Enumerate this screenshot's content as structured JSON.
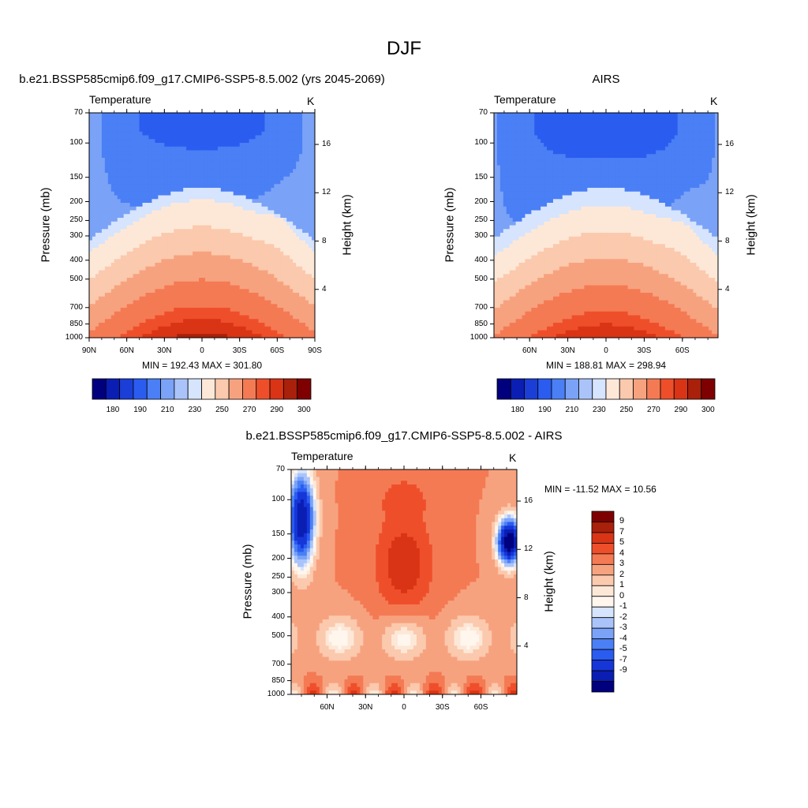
{
  "figure": {
    "title": "DJF"
  },
  "colors": {
    "abs_palette": [
      "#00007f",
      "#0a1eb3",
      "#1a3ed6",
      "#2a5cf0",
      "#4a7ff5",
      "#7aa2f7",
      "#aac4fa",
      "#d6e4fd",
      "#fde8d8",
      "#fbc9ad",
      "#f7a27f",
      "#f47a54",
      "#ee4f2a",
      "#d93415",
      "#a9200b",
      "#7f0000"
    ],
    "diff_palette": [
      "#00007f",
      "#0a1eb3",
      "#1636d8",
      "#2a5cf0",
      "#4a7ff5",
      "#7aa2f7",
      "#aac4fa",
      "#d6e4fd",
      "#fff6ee",
      "#fde8d8",
      "#fbc9ad",
      "#f7a27f",
      "#f47a54",
      "#ee4f2a",
      "#d93415",
      "#a9200b",
      "#7f0000"
    ]
  },
  "chart_data": [
    {
      "type": "heatmap",
      "id": "model",
      "title": "b.e21.BSSP585cmip6.f09_g17.CMIP6-SSP5-8.5.002 (yrs 2045-2069)",
      "variable": "Temperature",
      "units": "K",
      "xlabel": "",
      "ylabel": "Pressure (mb)",
      "ylabel_right": "Height (km)",
      "x_ticks": [
        "90N",
        "60N",
        "30N",
        "0",
        "30S",
        "60S",
        "90S"
      ],
      "x_range": [
        90,
        -90
      ],
      "y_ticks": [
        "70",
        "100",
        "150",
        "200",
        "250",
        "300",
        "400",
        "500",
        "700",
        "850",
        "1000"
      ],
      "y_right_ticks": [
        "16",
        "12",
        "8",
        "4"
      ],
      "min_label": "MIN = 192.43  MAX = 301.80",
      "stats": {
        "min": 192.43,
        "max": 301.8
      },
      "colorbar": {
        "levels": [
          "180",
          "190",
          "210",
          "230",
          "250",
          "270",
          "290",
          "300"
        ]
      }
    },
    {
      "type": "heatmap",
      "id": "obs",
      "title": "AIRS",
      "variable": "Temperature",
      "units": "K",
      "ylabel": "Pressure (mb)",
      "ylabel_right": "Height (km)",
      "x_ticks": [
        "60N",
        "30N",
        "0",
        "30S",
        "60S"
      ],
      "y_ticks": [
        "70",
        "100",
        "150",
        "200",
        "250",
        "300",
        "400",
        "500",
        "700",
        "850",
        "1000"
      ],
      "y_right_ticks": [
        "16",
        "12",
        "8",
        "4"
      ],
      "min_label": "MIN = 188.81  MAX = 298.94",
      "stats": {
        "min": 188.81,
        "max": 298.94
      },
      "colorbar": {
        "levels": [
          "180",
          "190",
          "210",
          "230",
          "250",
          "270",
          "290",
          "300"
        ]
      }
    },
    {
      "type": "heatmap",
      "id": "diff",
      "title": "b.e21.BSSP585cmip6.f09_g17.CMIP6-SSP5-8.5.002 - AIRS",
      "variable": "Temperature",
      "units": "K",
      "ylabel": "Pressure (mb)",
      "ylabel_right": "Height (km)",
      "x_ticks": [
        "60N",
        "30N",
        "0",
        "30S",
        "60S"
      ],
      "y_ticks": [
        "70",
        "100",
        "150",
        "200",
        "250",
        "300",
        "400",
        "500",
        "700",
        "850",
        "1000"
      ],
      "y_right_ticks": [
        "16",
        "12",
        "8",
        "4"
      ],
      "min_label": "MIN = -11.52  MAX =  10.56",
      "stats": {
        "min": -11.52,
        "max": 10.56
      },
      "colorbar": {
        "levels": [
          "9",
          "7",
          "5",
          "4",
          "3",
          "2",
          "1",
          "0",
          "-1",
          "-2",
          "-3",
          "-4",
          "-5",
          "-7",
          "-9"
        ]
      }
    }
  ]
}
